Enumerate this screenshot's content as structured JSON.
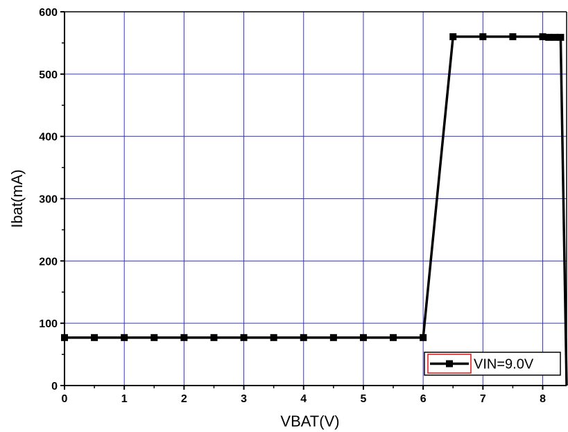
{
  "chart_data": {
    "type": "line",
    "xlabel": "VBAT(V)",
    "ylabel": "Ibat(mA)",
    "xlim": [
      0,
      8.4
    ],
    "ylim": [
      0,
      600
    ],
    "x_ticks": [
      0,
      1,
      2,
      3,
      4,
      5,
      6,
      7,
      8
    ],
    "y_ticks": [
      0,
      100,
      200,
      300,
      400,
      500,
      600
    ],
    "grid": true,
    "grid_color": "#3333cc",
    "legend_position": "bottom-right",
    "series": [
      {
        "name": "VIN=9.0V",
        "color": "#000000",
        "marker": "square",
        "points": [
          {
            "x": 0,
            "y": 77
          },
          {
            "x": 0.5,
            "y": 77
          },
          {
            "x": 1,
            "y": 77
          },
          {
            "x": 1.5,
            "y": 77
          },
          {
            "x": 2,
            "y": 77
          },
          {
            "x": 2.5,
            "y": 77
          },
          {
            "x": 3,
            "y": 77
          },
          {
            "x": 3.5,
            "y": 77
          },
          {
            "x": 4,
            "y": 77
          },
          {
            "x": 4.5,
            "y": 77
          },
          {
            "x": 5,
            "y": 77
          },
          {
            "x": 5.5,
            "y": 77
          },
          {
            "x": 6,
            "y": 77
          },
          {
            "x": 6.5,
            "y": 560
          },
          {
            "x": 7,
            "y": 560
          },
          {
            "x": 7.5,
            "y": 560
          },
          {
            "x": 8,
            "y": 560
          },
          {
            "x": 8.1,
            "y": 559
          },
          {
            "x": 8.2,
            "y": 559
          },
          {
            "x": 8.3,
            "y": 559
          },
          {
            "x": 8.4,
            "y": 0
          }
        ]
      }
    ]
  }
}
